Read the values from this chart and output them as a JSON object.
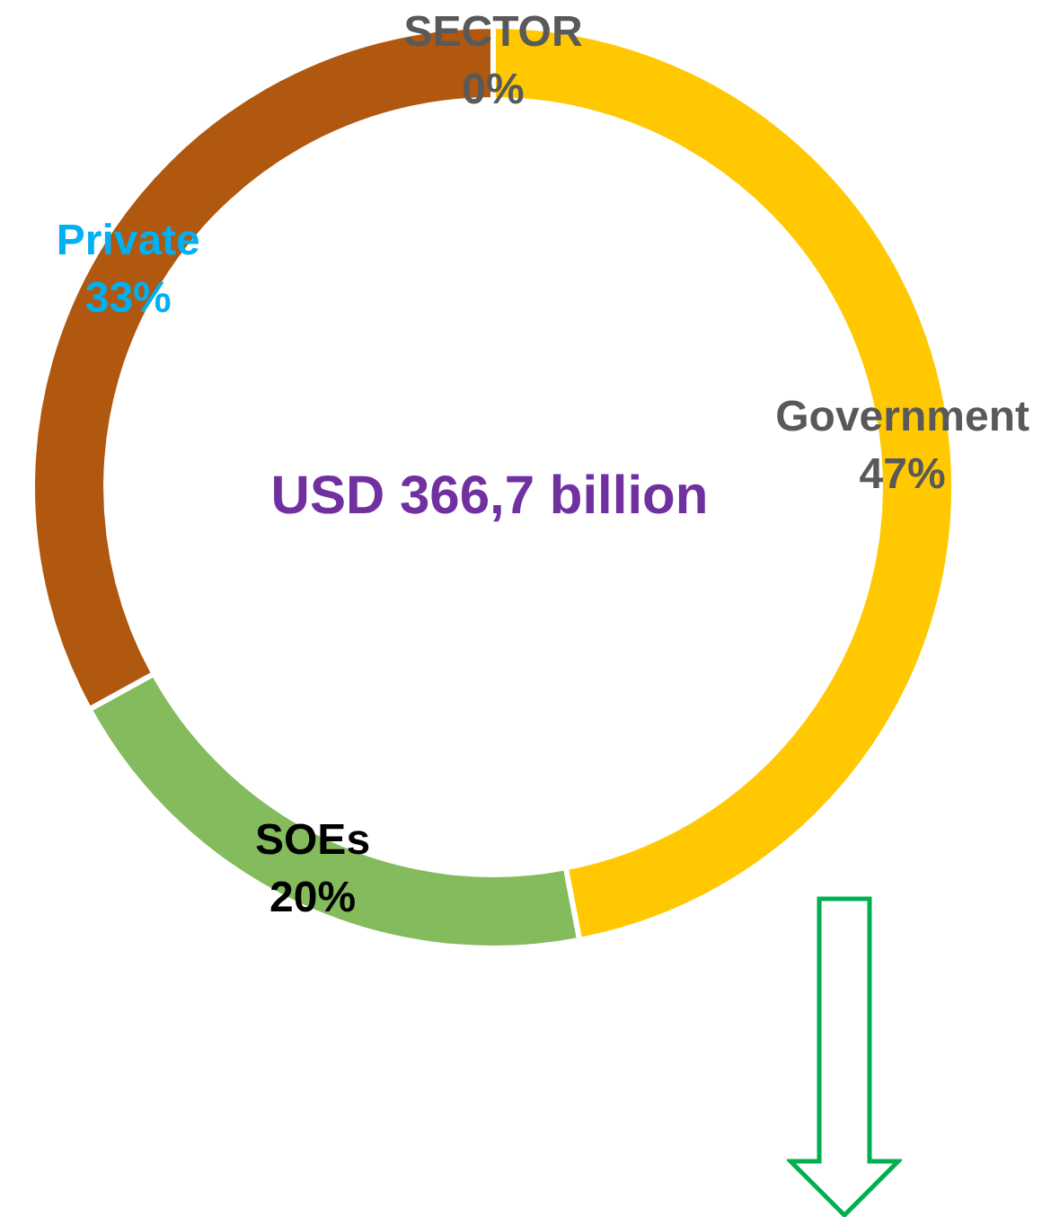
{
  "chart_data": {
    "type": "donut",
    "categories": [
      "Government",
      "SOEs",
      "Private",
      "SECTOR"
    ],
    "values": [
      47,
      20,
      33,
      0
    ],
    "colors": [
      "#ffc800",
      "#84bb5c",
      "#b0580f",
      "#7f7f7f"
    ],
    "value_labels": [
      "47%",
      "20%",
      "33%",
      "0%"
    ],
    "annotations": [
      "USD 366,7 billion"
    ],
    "legend": false
  }
}
